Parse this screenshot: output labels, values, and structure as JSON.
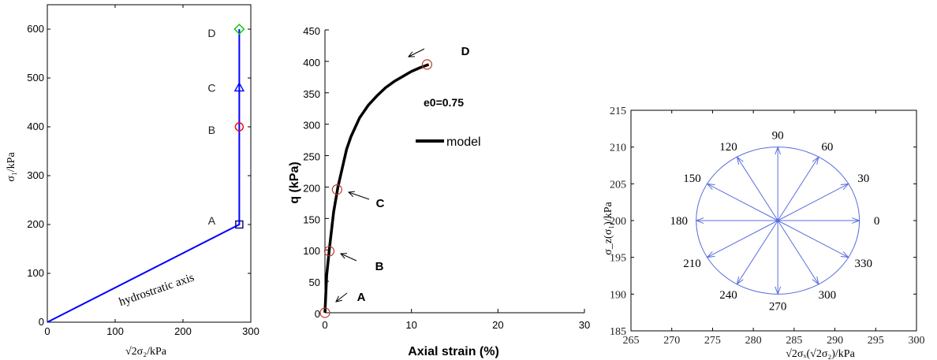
{
  "chart_data": [
    {
      "type": "line",
      "xlabel": "√2σ₂/kPa",
      "ylabel": "σ₁/kPa",
      "xlim": [
        0,
        300
      ],
      "ylim": [
        0,
        650
      ],
      "xticks": [
        "0",
        "100",
        "200",
        "300"
      ],
      "yticks": [
        "0",
        "100",
        "200",
        "300",
        "400",
        "500",
        "600"
      ],
      "annotation": "hydrostratic axis",
      "colors": {
        "path": "#0000ff",
        "A": "#000080",
        "B": "#ff0000",
        "C": "#0000ff",
        "D": "#00cc00"
      },
      "series": [
        {
          "x": [
            0,
            283,
            283
          ],
          "y": [
            0,
            200,
            600
          ]
        }
      ],
      "points": [
        {
          "label": "A",
          "x": 283,
          "y": 200,
          "marker": "square"
        },
        {
          "label": "B",
          "x": 283,
          "y": 400,
          "marker": "circle"
        },
        {
          "label": "C",
          "x": 283,
          "y": 480,
          "marker": "triangle"
        },
        {
          "label": "D",
          "x": 283,
          "y": 600,
          "marker": "diamond"
        }
      ]
    },
    {
      "type": "line",
      "xlabel": "Axial strain (%)",
      "ylabel": "q (kPa)",
      "xlim": [
        0,
        30
      ],
      "ylim": [
        0,
        450
      ],
      "xticks": [
        "0",
        "10",
        "20",
        "30"
      ],
      "yticks": [
        "0",
        "50",
        "100",
        "150",
        "200",
        "250",
        "300",
        "350",
        "400",
        "450"
      ],
      "annotation": "e0=0.75",
      "legend": "model",
      "legend_placement": "center",
      "series": [
        {
          "name": "model",
          "x": [
            0,
            0.2,
            0.5,
            1.0,
            1.5,
            2.0,
            2.5,
            3.0,
            4.0,
            5.0,
            6.0,
            7.0,
            8.0,
            9.0,
            10.0,
            11.0,
            12.0
          ],
          "y": [
            0,
            60,
            100,
            160,
            200,
            230,
            260,
            280,
            310,
            330,
            345,
            358,
            368,
            376,
            384,
            390,
            395
          ]
        }
      ],
      "points": [
        {
          "label": "A",
          "x": 0,
          "y": 0
        },
        {
          "label": "B",
          "x": 0.5,
          "y": 98
        },
        {
          "label": "C",
          "x": 1.4,
          "y": 196
        },
        {
          "label": "D",
          "x": 11.8,
          "y": 395
        }
      ]
    },
    {
      "type": "line",
      "xlabel": "√2σₓ(√2σ₂)/kPa",
      "ylabel": "σ_z(σ₁)/kPa",
      "xlim": [
        265,
        300
      ],
      "ylim": [
        185,
        215
      ],
      "xticks": [
        "265",
        "270",
        "275",
        "280",
        "285",
        "290",
        "295",
        "300"
      ],
      "yticks": [
        "185",
        "190",
        "195",
        "200",
        "205",
        "210",
        "215"
      ],
      "center": [
        283,
        200
      ],
      "radius": 10,
      "angles": [
        "0",
        "30",
        "60",
        "90",
        "120",
        "150",
        "180",
        "210",
        "240",
        "270",
        "300",
        "330"
      ],
      "color": "#5a6ee0"
    }
  ]
}
